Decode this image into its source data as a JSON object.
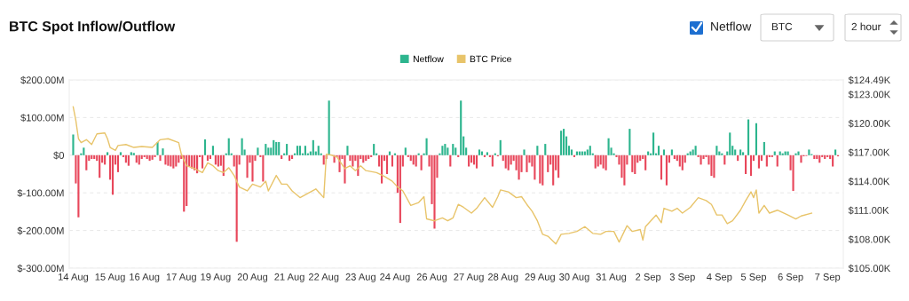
{
  "chart_data": {
    "type": "bar",
    "title": "BTC Spot Inflow/Outflow",
    "annotations": [
      "Netflow",
      "BTC",
      "2 hour"
    ],
    "legend": "top",
    "grid": "y",
    "categories": [
      "14 Aug",
      null,
      null,
      null,
      null,
      null,
      null,
      null,
      null,
      null,
      null,
      null,
      null,
      null,
      "15 Aug",
      null,
      null,
      null,
      null,
      null,
      null,
      null,
      null,
      null,
      null,
      null,
      null,
      "16 Aug",
      null,
      null,
      null,
      null,
      null,
      null,
      null,
      null,
      null,
      null,
      null,
      null,
      null,
      "17 Aug",
      null,
      null,
      null,
      null,
      null,
      null,
      null,
      null,
      null,
      null,
      null,
      null,
      "19 Aug",
      null,
      null,
      null,
      null,
      null,
      null,
      null,
      null,
      null,
      null,
      null,
      null,
      null,
      "20 Aug",
      null,
      null,
      null,
      null,
      null,
      null,
      null,
      null,
      null,
      null,
      null,
      null,
      null,
      "21 Aug",
      null,
      null,
      null,
      null,
      null,
      null,
      null,
      null,
      null,
      null,
      null,
      null,
      "22 Aug",
      null,
      null,
      null,
      null,
      null,
      null,
      null,
      null,
      null,
      null,
      null,
      null,
      null,
      "23 Aug",
      null,
      null,
      null,
      null,
      null,
      null,
      null,
      null,
      null,
      null,
      null,
      null,
      "24 Aug",
      null,
      null,
      null,
      null,
      null,
      null,
      null,
      null,
      null,
      null,
      null,
      null,
      null,
      "26 Aug",
      null,
      null,
      null,
      null,
      null,
      null,
      null,
      null,
      null,
      null,
      null,
      null,
      null,
      "27 Aug",
      null,
      null,
      null,
      null,
      null,
      null,
      null,
      null,
      null,
      null,
      null,
      null,
      "28 Aug",
      null,
      null,
      null,
      null,
      null,
      null,
      null,
      null,
      null,
      null,
      null,
      null,
      null,
      "29 Aug",
      null,
      null,
      null,
      null,
      null,
      null,
      null,
      null,
      null,
      null,
      null,
      null,
      "30 Aug",
      null,
      null,
      null,
      null,
      null,
      null,
      null,
      null,
      null,
      null,
      null,
      null,
      null,
      "31 Aug",
      null,
      null,
      null,
      null,
      null,
      null,
      null,
      null,
      null,
      null,
      null,
      null,
      null,
      "2 Sep",
      null,
      null,
      null,
      null,
      null,
      null,
      null,
      null,
      null,
      null,
      null,
      null,
      "3 Sep",
      null,
      null,
      null,
      null,
      null,
      null,
      null,
      null,
      null,
      null,
      null,
      null,
      null,
      "4 Sep",
      null,
      null,
      null,
      null,
      null,
      null,
      null,
      null,
      null,
      null,
      null,
      null,
      "5 Sep",
      null,
      null,
      null,
      null,
      null,
      null,
      null,
      null,
      null,
      null,
      null,
      null,
      null,
      "6 Sep",
      null,
      null,
      null,
      null,
      null,
      null,
      null,
      null,
      null,
      null,
      null,
      null,
      null,
      "7 Sep",
      null,
      null,
      null,
      null
    ],
    "ylim": [
      -300,
      200
    ],
    "yticks": [
      {
        "value": -300,
        "label": "$-300.00M"
      },
      {
        "value": -200,
        "label": "$-200.00M"
      },
      {
        "value": -100,
        "label": "$-100.00M"
      },
      {
        "value": 0,
        "label": "$0"
      },
      {
        "value": 100,
        "label": "$100.00M"
      },
      {
        "value": 200,
        "label": "$200.00M"
      }
    ],
    "y2lim": [
      105,
      124.49
    ],
    "y2ticks": [
      {
        "value": 105,
        "label": "$105.00K"
      },
      {
        "value": 108,
        "label": "$108.00K"
      },
      {
        "value": 111,
        "label": "$111.00K"
      },
      {
        "value": 114,
        "label": "$114.00K"
      },
      {
        "value": 117,
        "label": "$117.00K"
      },
      {
        "value": 120,
        "label": "$120.00K"
      },
      {
        "value": 123,
        "label": "$123.00K"
      },
      {
        "value": 124.49,
        "label": "$124.49K"
      }
    ],
    "series": [
      {
        "name": "Netflow",
        "color": "#2db58e",
        "values": [
          55,
          -75,
          -165,
          5,
          20,
          -40,
          -15,
          -10,
          -10,
          -15,
          -60,
          -20,
          -25,
          8,
          -65,
          -105,
          -25,
          -45,
          8,
          -5,
          -20,
          -28,
          8,
          6,
          -20,
          -25,
          -10,
          -5,
          -10,
          -15,
          -12,
          -5,
          35,
          -15,
          18,
          -25,
          -28,
          -30,
          -35,
          -30,
          -20,
          -10,
          -150,
          -135,
          -30,
          -35,
          -40,
          -48,
          -5,
          -35,
          42,
          -15,
          -10,
          25,
          -25,
          -30,
          -28,
          -55,
          5,
          45,
          5,
          -30,
          -230,
          -25,
          45,
          15,
          -60,
          -20,
          -70,
          -15,
          20,
          -5,
          -70,
          30,
          20,
          20,
          40,
          35,
          35,
          -10,
          5,
          30,
          -15,
          -10,
          5,
          25,
          25,
          5,
          25,
          5,
          10,
          40,
          10,
          25,
          5,
          -25,
          -10,
          145,
          null,
          -20,
          -5,
          -45,
          -10,
          -75,
          25,
          -15,
          -30,
          -15,
          -55,
          -10,
          -20,
          -15,
          -10,
          -5,
          30,
          5,
          -30,
          -75,
          -15,
          -50,
          10,
          -30,
          5,
          -100,
          -180,
          -30,
          20,
          -5,
          -15,
          -25,
          -30,
          5,
          -40,
          5,
          45,
          -30,
          -130,
          -195,
          -60,
          5,
          25,
          30,
          20,
          -30,
          30,
          20,
          -5,
          145,
          50,
          20,
          -30,
          -20,
          -25,
          -35,
          15,
          10,
          -5,
          8,
          -5,
          -30,
          5,
          -3,
          40,
          -15,
          -35,
          -40,
          -25,
          -15,
          -40,
          -65,
          -45,
          15,
          -45,
          -20,
          -30,
          -65,
          25,
          -75,
          -80,
          30,
          -45,
          -25,
          -80,
          -40,
          -60,
          65,
          70,
          50,
          25,
          15,
          -5,
          10,
          10,
          10,
          10,
          15,
          25,
          5,
          -35,
          -30,
          -25,
          -35,
          -40,
          45,
          20,
          5,
          -5,
          -25,
          -60,
          -80,
          -25,
          70,
          -45,
          -50,
          -20,
          -15,
          -10,
          -40,
          10,
          5,
          60,
          5,
          25,
          -65,
          15,
          -80,
          -20,
          15,
          -10,
          -15,
          -30,
          -40,
          -20,
          5,
          10,
          15,
          25,
          -5,
          -25,
          -10,
          -5,
          -25,
          -55,
          -60,
          25,
          10,
          5,
          -25,
          10,
          60,
          25,
          15,
          -15,
          15,
          8,
          -50,
          95,
          -55,
          -15,
          85,
          -35,
          -15,
          35,
          -30,
          -5,
          -5,
          10,
          -30,
          10,
          5,
          10,
          10,
          -40,
          -95,
          5,
          10,
          -20,
          -3,
          -2,
          15,
          3,
          -10,
          -10,
          -20,
          -5,
          -10,
          -5,
          -10,
          -30,
          15,
          -3
        ],
        "colors": [
          "#2db58e",
          "#e8475b",
          "#e8475b",
          "#2db58e",
          "#2db58e",
          "#e8475b",
          "#e8475b",
          "#e8475b",
          "#e8475b",
          "#e8475b",
          "#e8475b",
          "#e8475b",
          "#e8475b",
          "#2db58e",
          "#e8475b",
          "#e8475b",
          "#e8475b",
          "#e8475b",
          "#2db58e",
          "#e8475b",
          "#e8475b",
          "#e8475b",
          "#2db58e",
          "#2db58e",
          "#e8475b",
          "#e8475b",
          "#e8475b",
          "#e8475b",
          "#e8475b",
          "#e8475b",
          "#e8475b",
          "#e8475b",
          "#2db58e",
          "#e8475b",
          "#2db58e",
          "#e8475b",
          "#e8475b",
          "#e8475b",
          "#e8475b",
          "#e8475b",
          "#e8475b",
          "#e8475b",
          "#e8475b",
          "#e8475b",
          "#e8475b",
          "#e8475b",
          "#e8475b",
          "#e8475b",
          "#e8475b",
          "#e8475b",
          "#2db58e",
          "#e8475b",
          "#e8475b",
          "#2db58e",
          "#e8475b",
          "#e8475b",
          "#e8475b",
          "#e8475b",
          "#2db58e",
          "#2db58e",
          "#2db58e",
          "#e8475b",
          "#e8475b",
          "#e8475b",
          "#2db58e",
          "#2db58e",
          "#e8475b",
          "#e8475b",
          "#e8475b",
          "#e8475b",
          "#2db58e",
          "#e8475b",
          "#e8475b",
          "#2db58e",
          "#2db58e",
          "#2db58e",
          "#2db58e",
          "#2db58e",
          "#2db58e",
          "#e8475b",
          "#2db58e",
          "#2db58e",
          "#e8475b",
          "#e8475b",
          "#2db58e",
          "#2db58e",
          "#2db58e",
          "#2db58e",
          "#2db58e",
          "#2db58e",
          "#2db58e",
          "#2db58e",
          "#2db58e",
          "#2db58e",
          "#2db58e",
          "#e8475b",
          "#e8475b",
          "#2db58e",
          "#e8475b",
          "#e8475b",
          "#e8475b",
          "#e8475b",
          "#e8475b",
          "#e8475b",
          "#2db58e",
          "#e8475b",
          "#e8475b",
          "#e8475b",
          "#e8475b",
          "#e8475b",
          "#e8475b",
          "#e8475b",
          "#e8475b",
          "#e8475b",
          "#2db58e",
          "#2db58e",
          "#e8475b",
          "#e8475b",
          "#e8475b",
          "#e8475b",
          "#2db58e",
          "#e8475b",
          "#2db58e",
          "#e8475b",
          "#e8475b",
          "#e8475b",
          "#2db58e",
          "#e8475b",
          "#e8475b",
          "#e8475b",
          "#e8475b",
          "#2db58e",
          "#e8475b",
          "#2db58e",
          "#2db58e",
          "#e8475b",
          "#e8475b",
          "#e8475b",
          "#e8475b",
          "#2db58e",
          "#2db58e",
          "#2db58e",
          "#2db58e",
          "#e8475b",
          "#2db58e",
          "#2db58e",
          "#e8475b",
          "#2db58e",
          "#2db58e",
          "#2db58e",
          "#e8475b",
          "#e8475b",
          "#e8475b",
          "#e8475b",
          "#2db58e",
          "#2db58e",
          "#e8475b",
          "#2db58e",
          "#e8475b",
          "#e8475b",
          "#2db58e",
          "#e8475b",
          "#2db58e",
          "#e8475b",
          "#e8475b",
          "#e8475b",
          "#e8475b",
          "#e8475b",
          "#e8475b",
          "#e8475b",
          "#e8475b",
          "#2db58e",
          "#e8475b",
          "#e8475b",
          "#e8475b",
          "#e8475b",
          "#2db58e",
          "#e8475b",
          "#e8475b",
          "#2db58e",
          "#e8475b",
          "#e8475b",
          "#e8475b",
          "#e8475b",
          "#e8475b",
          "#2db58e",
          "#2db58e",
          "#2db58e",
          "#2db58e",
          "#2db58e",
          "#e8475b",
          "#2db58e",
          "#2db58e",
          "#2db58e",
          "#2db58e",
          "#2db58e",
          "#2db58e",
          "#2db58e",
          "#e8475b",
          "#e8475b",
          "#e8475b",
          "#e8475b",
          "#e8475b",
          "#2db58e",
          "#2db58e",
          "#2db58e",
          "#e8475b",
          "#e8475b",
          "#e8475b",
          "#e8475b",
          "#e8475b",
          "#2db58e",
          "#e8475b",
          "#e8475b",
          "#e8475b",
          "#e8475b",
          "#e8475b",
          "#e8475b",
          "#2db58e",
          "#2db58e",
          "#2db58e",
          "#2db58e",
          "#2db58e",
          "#e8475b",
          "#2db58e",
          "#e8475b",
          "#e8475b",
          "#2db58e",
          "#e8475b",
          "#e8475b",
          "#e8475b",
          "#e8475b",
          "#e8475b",
          "#2db58e",
          "#2db58e",
          "#2db58e",
          "#2db58e",
          "#e8475b",
          "#e8475b",
          "#e8475b",
          "#e8475b",
          "#e8475b",
          "#e8475b",
          "#e8475b",
          "#2db58e",
          "#2db58e",
          "#2db58e",
          "#e8475b",
          "#2db58e",
          "#2db58e",
          "#2db58e",
          "#2db58e",
          "#e8475b",
          "#2db58e",
          "#2db58e",
          "#e8475b",
          "#2db58e",
          "#e8475b",
          "#e8475b",
          "#2db58e",
          "#e8475b",
          "#e8475b",
          "#2db58e",
          "#e8475b",
          "#e8475b",
          "#e8475b",
          "#2db58e",
          "#e8475b",
          "#2db58e",
          "#2db58e",
          "#2db58e",
          "#2db58e",
          "#e8475b",
          "#e8475b",
          "#2db58e",
          "#2db58e",
          "#e8475b",
          "#e8475b",
          "#e8475b",
          "#2db58e",
          "#2db58e",
          "#e8475b",
          "#e8475b",
          "#e8475b",
          "#e8475b",
          "#e8475b",
          "#e8475b",
          "#e8475b",
          "#e8475b",
          "#2db58e",
          "#e8475b"
        ]
      },
      {
        "name": "BTC Price",
        "type": "line",
        "axis": "y2",
        "color": "#e8c46a",
        "values": [
          121.7,
          120.3,
          118.4,
          118,
          null,
          118.3,
          null,
          117.8,
          null,
          118.9,
          null,
          null,
          119.0,
          118.4,
          117.5,
          null,
          117.2,
          117.7,
          null,
          null,
          117.8,
          null,
          null,
          117.5,
          null,
          null,
          117.6,
          null,
          null,
          null,
          117.5,
          null,
          null,
          118.3,
          null,
          null,
          118.4,
          null,
          null,
          null,
          118,
          116.8,
          null,
          115.6,
          null,
          null,
          115.3,
          null,
          null,
          114.9,
          null,
          115.9,
          null,
          115.6,
          null,
          115.1,
          null,
          114.9,
          null,
          115.4,
          null,
          114.6,
          null,
          113.4,
          null,
          null,
          113.0,
          null,
          113.7,
          null,
          null,
          113.4,
          null,
          114.0,
          113.0,
          null,
          null,
          114.6,
          null,
          113.7,
          null,
          113.7,
          null,
          113.0,
          null,
          null,
          112.3,
          null,
          112.6,
          null,
          112.9,
          null,
          113.2,
          null,
          null,
          112.3,
          116.8,
          null,
          116.7,
          null,
          116.5,
          null,
          null,
          115.3,
          null,
          115.6,
          null,
          115.1,
          null,
          115.6,
          null,
          115.1,
          null,
          null,
          null,
          114.9,
          null,
          null,
          114.5,
          null,
          null,
          114.0,
          null,
          113.4,
          null,
          113.0,
          null,
          null,
          111.5,
          null,
          null,
          111.8,
          null,
          112.4,
          110.1,
          null,
          null,
          109.9,
          null,
          null,
          110.2,
          null,
          109.9,
          null,
          110.2,
          null,
          111.6,
          null,
          111.3,
          null,
          null,
          110.7,
          null,
          111.2,
          null,
          null,
          112.3,
          null,
          null,
          111.3,
          null,
          112.4,
          113.1,
          null,
          null,
          112.9,
          null,
          null,
          112.3,
          null,
          112.4,
          null,
          111.6,
          null,
          110.9,
          null,
          109.9,
          null,
          108.5,
          null,
          108.3,
          null,
          null,
          107.5,
          null,
          108.5,
          null,
          null,
          108.6,
          null,
          null,
          108.8,
          null,
          null,
          109.3,
          null,
          null,
          108.6,
          null,
          null,
          108.5,
          null,
          108.8,
          null,
          null,
          108.8,
          null,
          107.7,
          null,
          null,
          109.4,
          null,
          108.8,
          null,
          null,
          109.0,
          107.9,
          109.3,
          null,
          null,
          null,
          110.5,
          null,
          109.7,
          111.2,
          null,
          null,
          110.9,
          null,
          111.2,
          null,
          110.7,
          null,
          null,
          111.3,
          null,
          null,
          112.3,
          null,
          null,
          112.0,
          null,
          111.6,
          null,
          110.5,
          null,
          110.5,
          null,
          109.6,
          null,
          109.9,
          null,
          null,
          111.0,
          null,
          112.0,
          null,
          112.9,
          112.3,
          113.1,
          110.7,
          null,
          111.5,
          null,
          110.7,
          null,
          null,
          111.0,
          null,
          null,
          null,
          110.5,
          null,
          null,
          110.1,
          null,
          110.4,
          null,
          null,
          null,
          110.7,
          null,
          null,
          null,
          null,
          null,
          null,
          null,
          null,
          null,
          null
        ]
      }
    ]
  }
}
